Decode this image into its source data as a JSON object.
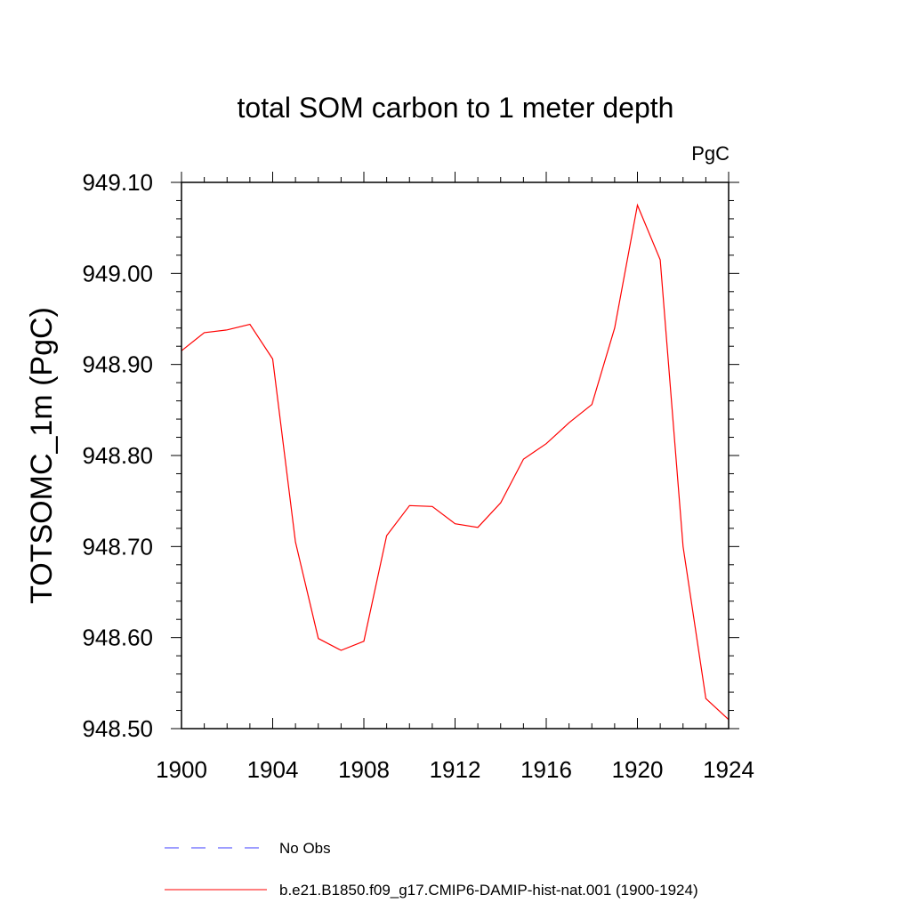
{
  "chart_data": {
    "type": "line",
    "title": "total SOM carbon to 1 meter depth",
    "units": "PgC",
    "ylabel": "TOTSOMC_1m  (PgC)",
    "xlabel": "",
    "xlim": [
      1900,
      1924
    ],
    "ylim": [
      948.5,
      949.1
    ],
    "x_ticks": [
      "1900",
      "1904",
      "1908",
      "1912",
      "1916",
      "1920",
      "1924"
    ],
    "y_ticks": [
      "948.50",
      "948.60",
      "948.70",
      "948.80",
      "948.90",
      "949.00",
      "949.10"
    ],
    "grid": false,
    "legend_position": "bottom",
    "series": [
      {
        "name": "No Obs",
        "color": "#3b3bff",
        "style": "dashed",
        "x": [],
        "values": []
      },
      {
        "name": "b.e21.B1850.f09_g17.CMIP6-DAMIP-hist-nat.001 (1900-1924)",
        "color": "#ff0000",
        "style": "solid",
        "x": [
          1900,
          1901,
          1902,
          1903,
          1904,
          1905,
          1906,
          1907,
          1908,
          1909,
          1910,
          1911,
          1912,
          1913,
          1914,
          1915,
          1916,
          1917,
          1918,
          1919,
          1920,
          1921,
          1922,
          1923,
          1924
        ],
        "values": [
          948.915,
          948.935,
          948.938,
          948.944,
          948.906,
          948.705,
          948.599,
          948.586,
          948.596,
          948.712,
          948.745,
          948.744,
          948.725,
          948.721,
          948.748,
          948.796,
          948.813,
          948.836,
          948.856,
          948.94,
          949.075,
          949.015,
          948.7,
          948.533,
          948.51
        ]
      }
    ]
  }
}
